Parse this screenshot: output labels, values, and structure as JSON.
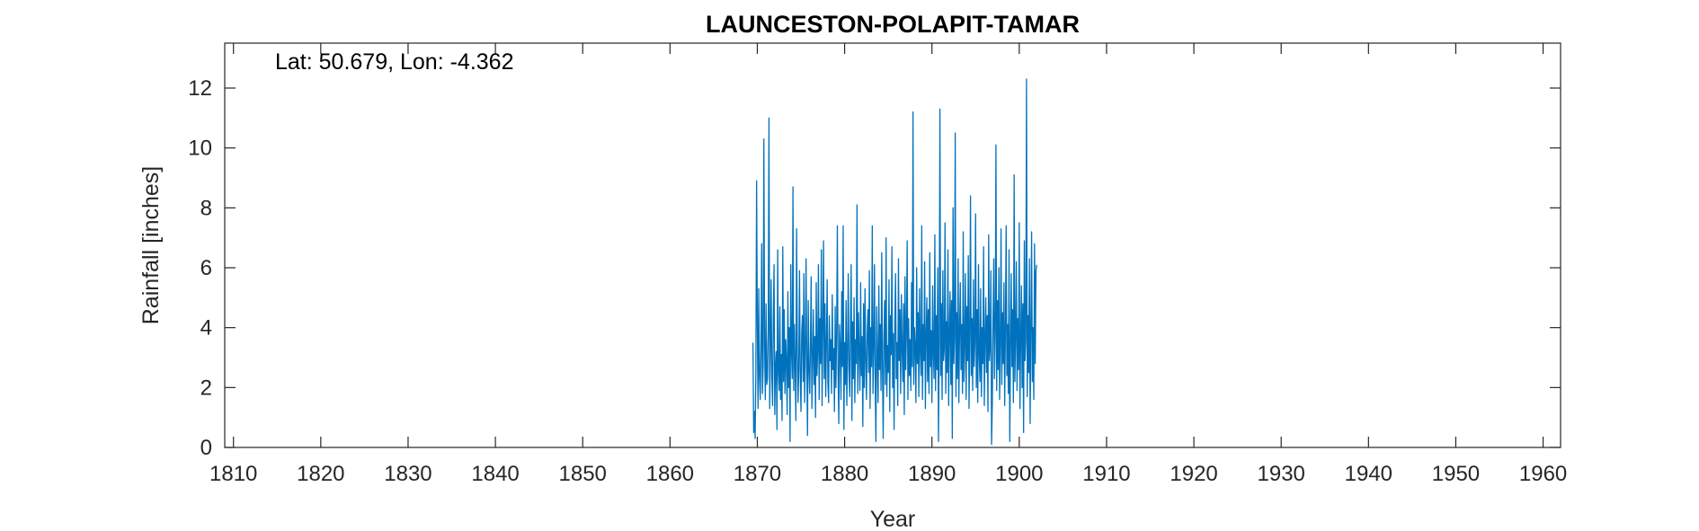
{
  "chart_data": {
    "type": "line",
    "title": "LAUNCESTON-POLAPIT-TAMAR",
    "annotation": "Lat: 50.679, Lon: -4.362",
    "xlabel": "Year",
    "ylabel": "Rainfall [inches]",
    "xlim": [
      1809,
      1962
    ],
    "ylim": [
      0,
      13.5
    ],
    "xticks": [
      1810,
      1820,
      1830,
      1840,
      1850,
      1860,
      1870,
      1880,
      1890,
      1900,
      1910,
      1920,
      1930,
      1940,
      1950,
      1960
    ],
    "xtick_labels": [
      "1810",
      "1820",
      "1830",
      "1840",
      "1850",
      "1860",
      "1870",
      "1880",
      "1890",
      "1900",
      "1910",
      "1920",
      "1930",
      "1940",
      "1950",
      "1960"
    ],
    "yticks": [
      0,
      2,
      4,
      6,
      8,
      10,
      12
    ],
    "ytick_labels": [
      "0",
      "2",
      "4",
      "6",
      "8",
      "10",
      "12"
    ],
    "grid": false,
    "series": [
      {
        "color": "#0072BD",
        "x_start": 1869.5,
        "x_step": 0.08333,
        "values": [
          3.5,
          0.5,
          1.2,
          0.3,
          2.6,
          8.9,
          4.1,
          1.3,
          5.3,
          2.4,
          1.6,
          3.2,
          6.8,
          1.8,
          2.7,
          10.3,
          3.4,
          1.6,
          4.8,
          2.1,
          2.3,
          3.9,
          11.0,
          1.3,
          3.3,
          5.6,
          2.3,
          1.4,
          4.3,
          6.1,
          1.1,
          2.7,
          3.2,
          0.6,
          6.6,
          2.5,
          1.9,
          4.7,
          1.6,
          3.1,
          0.9,
          6.7,
          2.2,
          4.6,
          1.8,
          3.6,
          2.9,
          1.1,
          5.2,
          2.0,
          4.0,
          0.2,
          6.1,
          3.2,
          2.3,
          8.7,
          1.9,
          4.1,
          2.6,
          0.9,
          7.3,
          3.3,
          1.5,
          2.7,
          5.9,
          2.4,
          1.2,
          3.8,
          4.4,
          2.2,
          5.8,
          1.5,
          3.0,
          6.3,
          2.8,
          0.4,
          4.9,
          2.6,
          1.8,
          3.4,
          5.7,
          1.3,
          2.9,
          4.6,
          2.1,
          3.7,
          1.0,
          5.5,
          2.4,
          3.2,
          6.1,
          1.6,
          4.3,
          2.8,
          6.6,
          1.4,
          3.9,
          6.9,
          2.3,
          4.8,
          1.7,
          3.5,
          5.6,
          2.2,
          1.5,
          4.4,
          2.9,
          3.6,
          1.8,
          5.1,
          2.6,
          3.3,
          1.2,
          4.7,
          2.0,
          3.8,
          7.4,
          2.5,
          0.8,
          4.1,
          3.4,
          1.6,
          5.2,
          2.7,
          7.4,
          0.6,
          3.5,
          2.1,
          4.9,
          1.4,
          3.1,
          5.8,
          2.6,
          1.7,
          3.9,
          6.1,
          0.9,
          4.2,
          2.3,
          5.0,
          1.5,
          3.6,
          2.8,
          8.1,
          1.8,
          4.5,
          3.2,
          1.9,
          5.5,
          2.4,
          3.7,
          0.7,
          4.8,
          2.0,
          5.3,
          2.9,
          1.6,
          3.8,
          4.6,
          2.5,
          5.9,
          1.3,
          4.0,
          2.7,
          7.4,
          1.8,
          3.3,
          6.1,
          2.2,
          0.2,
          4.7,
          3.0,
          1.5,
          5.4,
          2.6,
          4.1,
          1.9,
          6.5,
          2.8,
          0.3,
          3.6,
          4.9,
          2.1,
          7.0,
          1.7,
          3.4,
          2.5,
          5.6,
          1.2,
          4.4,
          3.1,
          6.7,
          2.0,
          3.8,
          0.6,
          4.2,
          5.8,
          2.3,
          3.5,
          1.4,
          6.3,
          2.9,
          4.6,
          1.8,
          5.1,
          3.3,
          2.2,
          4.8,
          1.1,
          5.7,
          2.6,
          3.9,
          6.9,
          1.6,
          4.3,
          2.4,
          3.6,
          1.9,
          5.5,
          2.7,
          11.2,
          2.1,
          4.0,
          3.4,
          1.5,
          6.0,
          2.8,
          4.5,
          1.7,
          5.3,
          3.2,
          2.4,
          7.4,
          1.6,
          4.1,
          2.9,
          6.2,
          1.3,
          3.7,
          5.0,
          2.2,
          4.6,
          1.8,
          6.5,
          2.7,
          3.9,
          1.5,
          5.4,
          3.1,
          2.3,
          7.1,
          1.9,
          4.4,
          2.6,
          6.0,
          0.2,
          3.5,
          11.3,
          2.4,
          4.8,
          1.6,
          5.9,
          2.9,
          3.3,
          7.5,
          1.8,
          4.2,
          2.5,
          6.6,
          1.4,
          3.8,
          5.2,
          2.1,
          4.9,
          0.3,
          8.0,
          2.8,
          3.6,
          10.5,
          1.7,
          4.5,
          2.3,
          6.3,
          1.5,
          3.9,
          5.5,
          2.6,
          4.1,
          1.8,
          7.2,
          2.2,
          3.4,
          5.8,
          1.6,
          4.7,
          2.9,
          6.4,
          1.3,
          3.7,
          8.4,
          2.4,
          4.3,
          1.9,
          5.6,
          2.7,
          3.5,
          7.8,
          2.0,
          4.6,
          1.5,
          6.1,
          3.1,
          2.2,
          5.3,
          1.7,
          4.0,
          2.8,
          6.7,
          1.4,
          3.6,
          5.0,
          2.5,
          4.4,
          1.2,
          7.1,
          2.9,
          3.3,
          5.9,
          0.1,
          1.5,
          4.2,
          6.3,
          2.3,
          3.8,
          10.1,
          1.9,
          4.9,
          2.6,
          6.0,
          1.6,
          3.4,
          7.3,
          2.1,
          4.5,
          2.8,
          5.5,
          1.4,
          3.9,
          7.4,
          2.4,
          4.1,
          1.8,
          6.6,
          0.2,
          3.2,
          5.8,
          2.7,
          4.6,
          1.5,
          9.1,
          2.2,
          3.7,
          6.2,
          1.9,
          4.3,
          2.6,
          7.5,
          1.3,
          3.5,
          5.4,
          2.0,
          4.8,
          0.5,
          6.9,
          2.9,
          3.6,
          12.3,
          1.7,
          4.4,
          2.5,
          6.3,
          0.8,
          3.9,
          7.2,
          2.2,
          4.0,
          1.6,
          6.8,
          2.8,
          5.9,
          6.1
        ]
      }
    ]
  }
}
